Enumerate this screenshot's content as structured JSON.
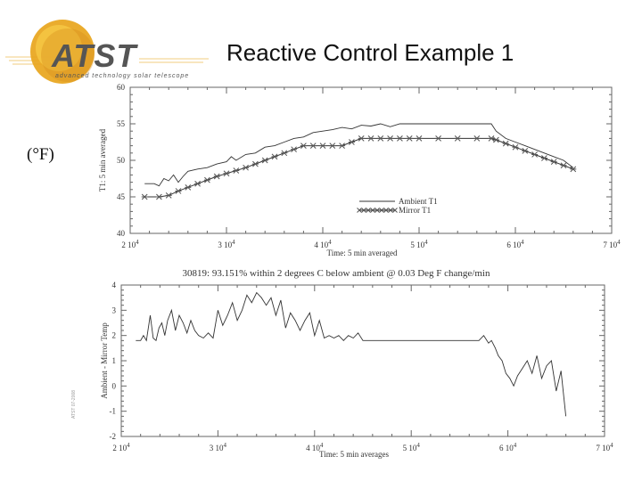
{
  "slide": {
    "title": "Reactive Control Example 1",
    "unit_label": "(°F)",
    "logo_text": "ATST",
    "logo_tagline": "advanced technology solar telescope",
    "credit": "ATST 07-2008"
  },
  "colors": {
    "logo_orange": "#e8a317",
    "logo_dark": "#3a3a3a",
    "line": "#333333",
    "axis": "#666666"
  },
  "chart_data": [
    {
      "type": "line",
      "xlabel": "Time: 5 min averaged",
      "ylabel": "T1: 5 min averaged",
      "xlim": [
        20000,
        70000
      ],
      "ylim": [
        40,
        60
      ],
      "x_ticks": [
        {
          "value": 20000,
          "mant": "2 10",
          "exp": "4"
        },
        {
          "value": 30000,
          "mant": "3 10",
          "exp": "4"
        },
        {
          "value": 40000,
          "mant": "4 10",
          "exp": "4"
        },
        {
          "value": 50000,
          "mant": "5 10",
          "exp": "4"
        },
        {
          "value": 60000,
          "mant": "6 10",
          "exp": "4"
        },
        {
          "value": 70000,
          "mant": "7 10",
          "exp": "4"
        }
      ],
      "y_ticks": [
        "40",
        "45",
        "50",
        "55",
        "60"
      ],
      "legend_position": "bottom-right",
      "series": [
        {
          "name": "Ambient T1",
          "style": "solid",
          "x": [
            21500,
            22500,
            23000,
            23500,
            24000,
            24500,
            25000,
            25500,
            26000,
            27000,
            28000,
            29000,
            30000,
            30500,
            31000,
            32000,
            33000,
            34000,
            35000,
            36000,
            37000,
            38000,
            39000,
            40000,
            41000,
            42000,
            43000,
            44000,
            45000,
            46000,
            47000,
            48000,
            49000,
            50000,
            52000,
            54000,
            56000,
            57500,
            58000,
            59000,
            60000,
            61000,
            62000,
            63000,
            64000,
            65000,
            66000
          ],
          "y": [
            46.8,
            46.8,
            46.5,
            47.5,
            47.2,
            48.0,
            47.0,
            47.8,
            48.5,
            48.8,
            49.0,
            49.5,
            49.8,
            50.5,
            50.0,
            50.8,
            51.0,
            51.8,
            52.0,
            52.5,
            53.0,
            53.2,
            53.8,
            54.0,
            54.2,
            54.5,
            54.3,
            54.8,
            54.7,
            55.0,
            54.6,
            55.0,
            55.0,
            55.0,
            55.0,
            55.0,
            55.0,
            55.0,
            54.0,
            53.0,
            52.5,
            52.0,
            51.5,
            51.0,
            50.5,
            50.0,
            49.0
          ]
        },
        {
          "name": "Mirror T1",
          "style": "star",
          "x": [
            21500,
            23000,
            24000,
            25000,
            26000,
            27000,
            28000,
            29000,
            30000,
            31000,
            32000,
            33000,
            34000,
            35000,
            36000,
            37000,
            38000,
            39000,
            40000,
            41000,
            42000,
            43000,
            44000,
            45000,
            46000,
            47000,
            48000,
            49000,
            50000,
            52000,
            54000,
            56000,
            57500,
            58000,
            59000,
            60000,
            61000,
            62000,
            63000,
            64000,
            65000,
            66000
          ],
          "y": [
            45.0,
            45.0,
            45.2,
            45.8,
            46.3,
            46.8,
            47.3,
            47.8,
            48.2,
            48.6,
            49.0,
            49.5,
            50.0,
            50.5,
            51.0,
            51.5,
            52.0,
            52.0,
            52.0,
            52.0,
            52.0,
            52.5,
            53.0,
            53.0,
            53.0,
            53.0,
            53.0,
            53.0,
            53.0,
            53.0,
            53.0,
            53.0,
            53.0,
            52.8,
            52.3,
            51.8,
            51.3,
            50.8,
            50.3,
            49.8,
            49.3,
            48.8
          ]
        }
      ]
    },
    {
      "type": "line",
      "title": "30819:   93.151% within 2 degrees C below ambient @ 0.03 Deg F change/min",
      "xlabel": "Time: 5 min averages",
      "ylabel": "Ambient - Mirror Temp",
      "xlim": [
        20000,
        70000
      ],
      "ylim": [
        -2,
        4
      ],
      "x_ticks": [
        {
          "value": 20000,
          "mant": "2 10",
          "exp": "4"
        },
        {
          "value": 30000,
          "mant": "3 10",
          "exp": "4"
        },
        {
          "value": 40000,
          "mant": "4 10",
          "exp": "4"
        },
        {
          "value": 50000,
          "mant": "5 10",
          "exp": "4"
        },
        {
          "value": 60000,
          "mant": "6 10",
          "exp": "4"
        },
        {
          "value": 70000,
          "mant": "7 10",
          "exp": "4"
        }
      ],
      "y_ticks": [
        "-2",
        "-1",
        "0",
        "1",
        "2",
        "3",
        "4"
      ],
      "series": [
        {
          "name": "",
          "x": [
            21500,
            22000,
            22300,
            22600,
            23000,
            23300,
            23600,
            23900,
            24200,
            24500,
            24800,
            25200,
            25600,
            26000,
            26400,
            26800,
            27200,
            27600,
            28000,
            28500,
            29000,
            29500,
            30000,
            30500,
            31000,
            31500,
            32000,
            32500,
            33000,
            33500,
            34000,
            34500,
            35000,
            35500,
            36000,
            36500,
            37000,
            37500,
            38000,
            38500,
            39000,
            39500,
            40000,
            40500,
            41000,
            41500,
            42000,
            42500,
            43000,
            43500,
            44000,
            44500,
            45000,
            47000,
            50000,
            53000,
            55000,
            57000,
            57500,
            58000,
            58300,
            58700,
            59000,
            59400,
            59800,
            60200,
            60600,
            61000,
            61500,
            62000,
            62500,
            63000,
            63500,
            64000,
            64500,
            65000,
            65500,
            66000
          ],
          "y": [
            1.8,
            1.8,
            2.0,
            1.8,
            2.8,
            1.9,
            1.8,
            2.3,
            2.5,
            2.0,
            2.6,
            3.0,
            2.2,
            2.8,
            2.5,
            2.1,
            2.6,
            2.2,
            2.0,
            1.9,
            2.1,
            1.9,
            3.0,
            2.4,
            2.8,
            3.3,
            2.6,
            3.0,
            3.6,
            3.3,
            3.7,
            3.5,
            3.2,
            3.5,
            2.8,
            3.4,
            2.3,
            2.9,
            2.6,
            2.2,
            2.6,
            2.9,
            2.0,
            2.6,
            1.9,
            2.0,
            1.9,
            2.0,
            1.8,
            2.0,
            1.9,
            2.1,
            1.8,
            1.8,
            1.8,
            1.8,
            1.8,
            1.8,
            2.0,
            1.7,
            1.8,
            1.5,
            1.2,
            1.0,
            0.5,
            0.3,
            0.0,
            0.4,
            0.7,
            1.0,
            0.5,
            1.2,
            0.3,
            0.8,
            1.0,
            -0.2,
            0.6,
            -1.2
          ]
        }
      ]
    }
  ]
}
